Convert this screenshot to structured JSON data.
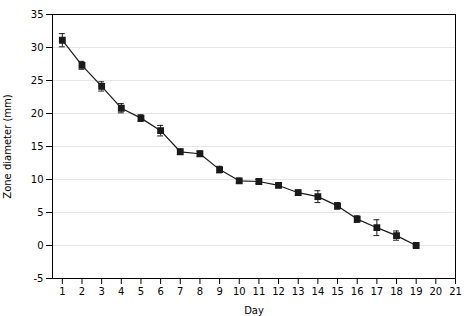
{
  "chart_data": {
    "type": "line",
    "x": [
      1,
      2,
      3,
      4,
      5,
      6,
      7,
      8,
      9,
      10,
      11,
      12,
      13,
      14,
      15,
      16,
      17,
      18,
      19
    ],
    "values": [
      31.1,
      27.3,
      24.1,
      20.8,
      19.3,
      17.4,
      14.2,
      13.9,
      11.5,
      9.8,
      9.7,
      9.1,
      8.0,
      7.4,
      6.0,
      4.0,
      2.7,
      1.5,
      0.0
    ],
    "yerr": [
      1.0,
      0.6,
      0.7,
      0.7,
      0.5,
      0.8,
      0.4,
      0.4,
      0.5,
      0.4,
      0.3,
      0.3,
      0.4,
      0.9,
      0.5,
      0.5,
      1.2,
      0.7,
      0.2
    ],
    "xlabel": "Day",
    "ylabel": "Zone diameter (mm)",
    "xlim": [
      0.5,
      21
    ],
    "ylim": [
      -5,
      35
    ],
    "xticks": [
      1,
      2,
      3,
      4,
      5,
      6,
      7,
      8,
      9,
      10,
      11,
      12,
      13,
      14,
      15,
      16,
      17,
      18,
      19,
      20,
      21
    ],
    "yticks": [
      -5,
      0,
      5,
      10,
      15,
      20,
      25,
      30,
      35
    ],
    "grid": "y",
    "color": "#1a1a1a",
    "marker": "square"
  }
}
